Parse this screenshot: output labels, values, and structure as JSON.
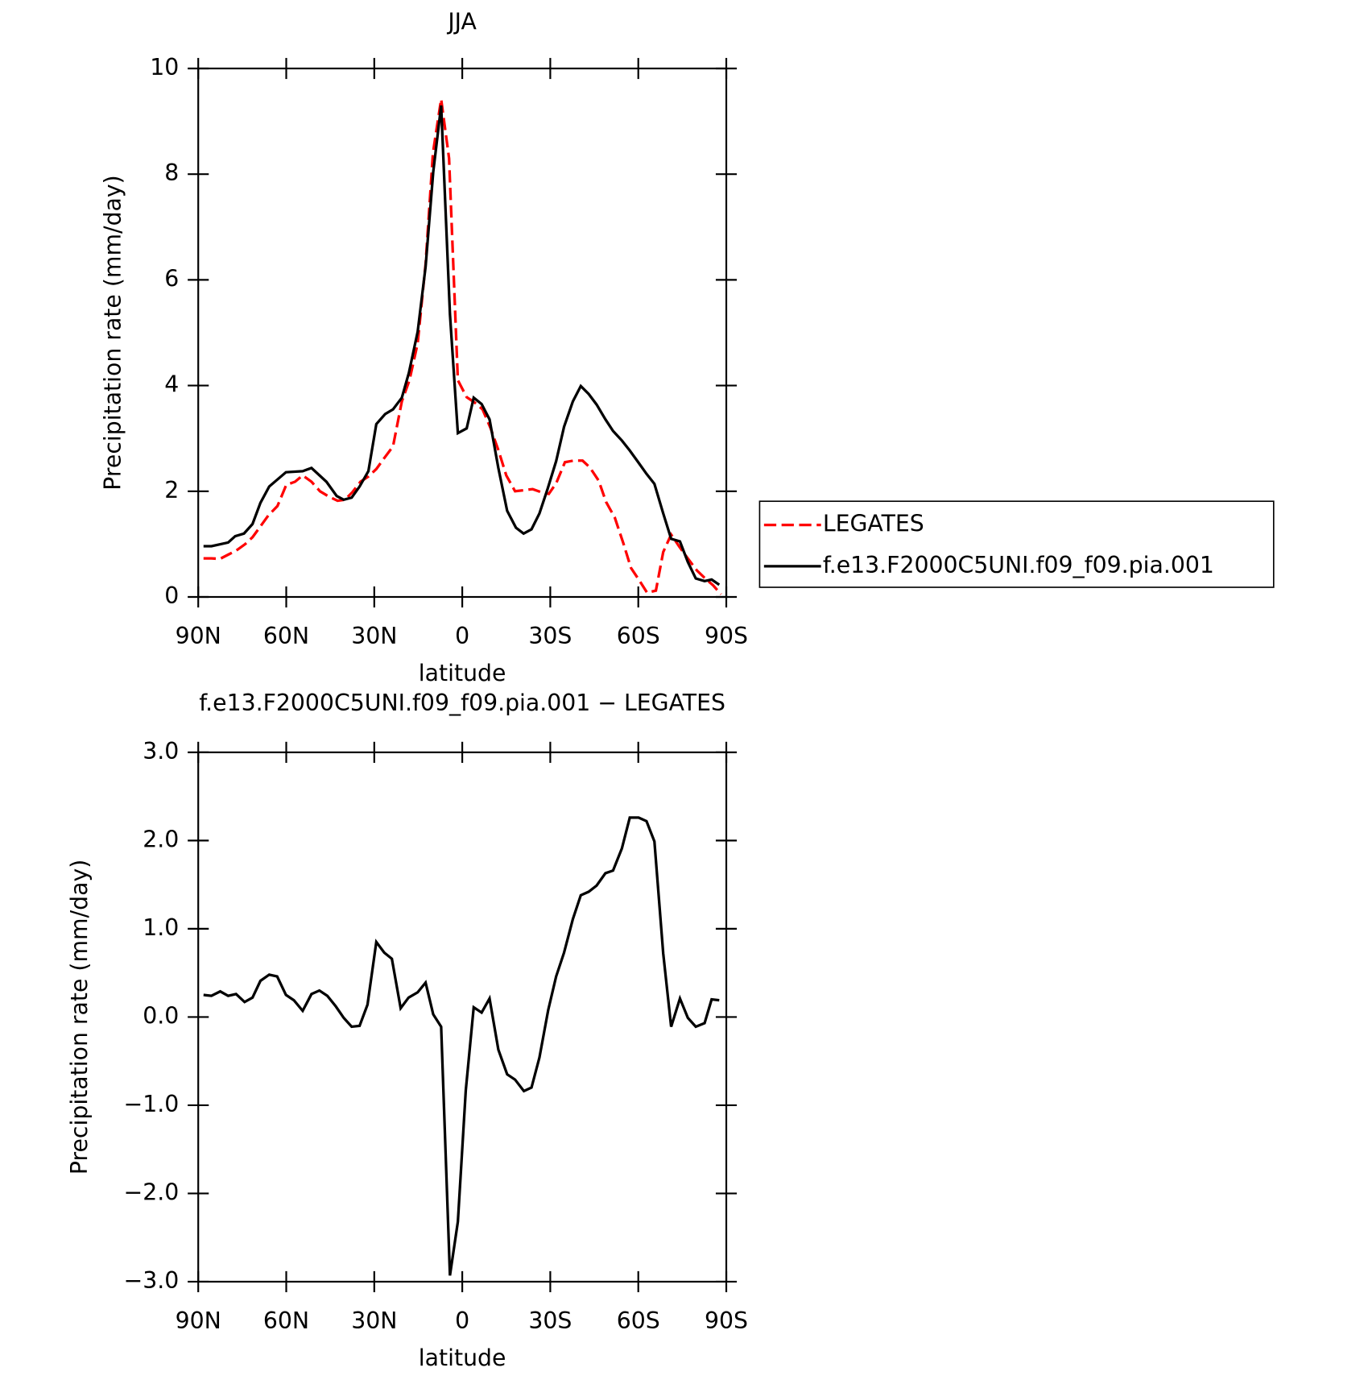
{
  "chart_data": [
    {
      "type": "line",
      "title": "JJA",
      "xlabel": "latitude",
      "ylabel": "Precipitation rate (mm/day)",
      "xlim": [
        90,
        -90
      ],
      "ylim": [
        0,
        10
      ],
      "xticks": [
        {
          "value": 90,
          "label": "90N"
        },
        {
          "value": 60,
          "label": "60N"
        },
        {
          "value": 30,
          "label": "30N"
        },
        0,
        {
          "value": -30,
          "label": "30S"
        },
        {
          "value": -60,
          "label": "60S"
        },
        {
          "value": -90,
          "label": "90S"
        }
      ],
      "yticks": [
        0,
        2,
        4,
        6,
        8,
        10
      ],
      "legend": "right",
      "series": [
        {
          "name": "LEGATES",
          "color": "#ff0000",
          "linestyle": "dashed",
          "x": [
            88.2,
            85.5,
            82.6,
            79.8,
            77,
            74,
            71.5,
            69,
            66,
            63,
            60,
            57,
            54.4,
            51.4,
            48.5,
            45.5,
            42.5,
            40,
            37.5,
            34.7,
            32,
            29.3,
            26.3,
            23.6,
            20.6,
            18,
            15.2,
            12.5,
            10,
            7.2,
            4.5,
            1.5,
            -1.5,
            -4.2,
            -6.9,
            -9.6,
            -12.3,
            -15,
            -18,
            -21,
            -24,
            -27,
            -29.5,
            -32,
            -35,
            -38,
            -41,
            -43.5,
            -46.5,
            -49,
            -52,
            -55,
            -57.5,
            -60.5,
            -63,
            -66,
            -68.5,
            -71.2,
            -74,
            -77,
            -80,
            -82.8,
            -85.5,
            -88.2
          ],
          "values": [
            0.73,
            0.73,
            0.72,
            0.8,
            0.88,
            1.0,
            1.13,
            1.32,
            1.55,
            1.72,
            2.12,
            2.18,
            2.3,
            2.18,
            2.0,
            1.9,
            1.82,
            1.84,
            1.98,
            2.18,
            2.28,
            2.42,
            2.65,
            2.85,
            3.7,
            4.1,
            4.8,
            6.3,
            8.4,
            9.42,
            8.3,
            4.1,
            3.78,
            3.68,
            3.55,
            3.2,
            2.78,
            2.3,
            2.0,
            2.02,
            2.04,
            1.98,
            1.95,
            2.15,
            2.55,
            2.58,
            2.58,
            2.45,
            2.2,
            1.8,
            1.5,
            1.0,
            0.55,
            0.3,
            0.08,
            0.12,
            0.85,
            1.18,
            0.95,
            0.72,
            0.5,
            0.35,
            0.22,
            0.05
          ]
        },
        {
          "name": "f.e13.F2000C5UNI.f09_f09.pia.001",
          "color": "#000000",
          "linestyle": "solid",
          "x": [
            88.2,
            85.5,
            79.8,
            77.4,
            74.4,
            71.5,
            68.8,
            65.8,
            60.1,
            54.4,
            51.4,
            46.3,
            42.8,
            40.4,
            37.7,
            35,
            32,
            29.3,
            26.3,
            23.6,
            20.6,
            18.2,
            15.2,
            12.5,
            9.9,
            7.2,
            4.2,
            1.5,
            -1.5,
            -3.9,
            -6.6,
            -9.3,
            -12.3,
            -15.3,
            -18.3,
            -20.9,
            -23.6,
            -26.3,
            -29,
            -32,
            -34.7,
            -37.7,
            -40.4,
            -43.1,
            -45.8,
            -48.8,
            -51.4,
            -54.4,
            -57.1,
            -60.1,
            -62.8,
            -65.5,
            -68.5,
            -71.2,
            -74.2,
            -76.9,
            -79.6,
            -82.6,
            -85,
            -87.6
          ],
          "values": [
            0.96,
            0.96,
            1.03,
            1.15,
            1.2,
            1.38,
            1.78,
            2.09,
            2.36,
            2.38,
            2.44,
            2.18,
            1.91,
            1.84,
            1.88,
            2.09,
            2.38,
            3.27,
            3.46,
            3.55,
            3.77,
            4.24,
            5.02,
            6.25,
            8.04,
            9.3,
            5.35,
            3.1,
            3.19,
            3.77,
            3.65,
            3.36,
            2.44,
            1.63,
            1.31,
            1.2,
            1.28,
            1.58,
            2.03,
            2.57,
            3.22,
            3.7,
            3.99,
            3.84,
            3.64,
            3.36,
            3.14,
            2.96,
            2.77,
            2.54,
            2.33,
            2.14,
            1.58,
            1.1,
            1.05,
            0.66,
            0.35,
            0.3,
            0.33,
            0.23
          ]
        }
      ]
    },
    {
      "type": "line",
      "title": "f.e13.F2000C5UNI.f09_f09.pia.001 − LEGATES",
      "xlabel": "latitude",
      "ylabel": "Precipitation rate (mm/day)",
      "xlim": [
        90,
        -90
      ],
      "ylim": [
        -3,
        3
      ],
      "xticks": [
        {
          "value": 90,
          "label": "90N"
        },
        {
          "value": 60,
          "label": "60N"
        },
        {
          "value": 30,
          "label": "30N"
        },
        0,
        {
          "value": -30,
          "label": "30S"
        },
        {
          "value": -60,
          "label": "60S"
        },
        {
          "value": -90,
          "label": "90S"
        }
      ],
      "yticks": [
        {
          "value": -3,
          "label": "−3.0"
        },
        {
          "value": -2,
          "label": "−2.0"
        },
        {
          "value": -1,
          "label": "−1.0"
        },
        {
          "value": 0,
          "label": "0.0"
        },
        {
          "value": 1,
          "label": "1.0"
        },
        {
          "value": 2,
          "label": "2.0"
        },
        {
          "value": 3,
          "label": "3.0"
        }
      ],
      "series": [
        {
          "color": "#000000",
          "linestyle": "solid",
          "x": [
            88.2,
            85.5,
            82.5,
            79.8,
            77.1,
            74.2,
            71.5,
            68.8,
            65.8,
            63.1,
            60.1,
            57.4,
            54.4,
            51.4,
            48.7,
            46,
            43.1,
            40.4,
            37.7,
            35,
            32.3,
            29.3,
            26.6,
            24,
            21,
            18.3,
            15.2,
            12.5,
            9.9,
            7.2,
            4.2,
            1.5,
            -1.2,
            -3.9,
            -6.6,
            -9.3,
            -12.3,
            -15.3,
            -18,
            -21,
            -23.6,
            -26.3,
            -29.3,
            -32,
            -34.7,
            -37.7,
            -40.4,
            -43.1,
            -45.8,
            -48.8,
            -51.4,
            -54.4,
            -57.1,
            -60.1,
            -62.8,
            -65.5,
            -68.5,
            -71.2,
            -74.2,
            -76.9,
            -79.6,
            -82.6,
            -85,
            -87.6
          ],
          "values": [
            0.25,
            0.24,
            0.29,
            0.24,
            0.26,
            0.17,
            0.22,
            0.41,
            0.48,
            0.46,
            0.25,
            0.19,
            0.07,
            0.26,
            0.3,
            0.24,
            0.12,
            -0.01,
            -0.11,
            -0.1,
            0.14,
            0.85,
            0.73,
            0.66,
            0.1,
            0.22,
            0.28,
            0.39,
            0.03,
            -0.11,
            -2.93,
            -2.32,
            -0.83,
            0.11,
            0.05,
            0.21,
            -0.37,
            -0.65,
            -0.71,
            -0.84,
            -0.8,
            -0.46,
            0.08,
            0.46,
            0.73,
            1.11,
            1.38,
            1.42,
            1.49,
            1.63,
            1.66,
            1.91,
            2.26,
            2.26,
            2.22,
            1.99,
            0.72,
            -0.11,
            0.21,
            -0.01,
            -0.11,
            -0.07,
            0.2,
            0.19
          ]
        }
      ]
    }
  ]
}
